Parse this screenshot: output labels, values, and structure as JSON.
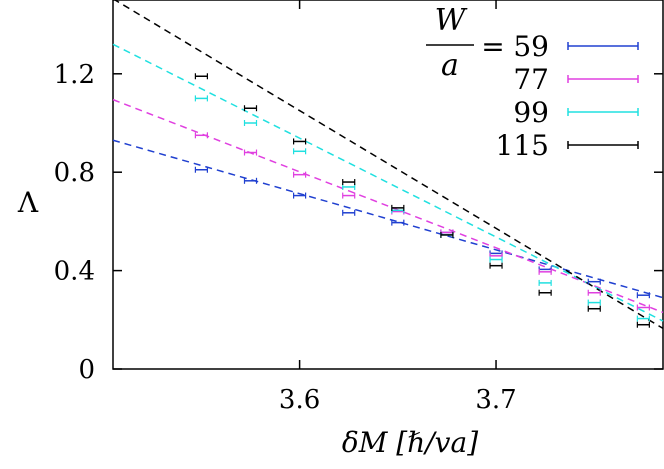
{
  "chart_data": {
    "type": "scatter",
    "xlabel": "δM [ℏ/va]",
    "ylabel": "Λ",
    "xlim": [
      3.505,
      3.785
    ],
    "ylim": [
      0,
      1.5
    ],
    "x_ticks": [
      "3.6",
      "3.7"
    ],
    "x_tick_values": [
      3.6,
      3.7
    ],
    "y_ticks": [
      "0",
      "0.4",
      "0.8",
      "1.2"
    ],
    "y_tick_values": [
      0,
      0.4,
      0.8,
      1.2
    ],
    "grid": false,
    "legend": {
      "placement": "top-right",
      "title_numerator": "W",
      "title_denominator": "a",
      "title_suffix": "="
    },
    "series": [
      {
        "name": "59",
        "color": "#2040d0",
        "x": [
          3.55,
          3.575,
          3.6,
          3.625,
          3.65,
          3.675,
          3.7,
          3.725,
          3.75,
          3.775
        ],
        "y": [
          0.81,
          0.765,
          0.705,
          0.635,
          0.595,
          0.555,
          0.47,
          0.405,
          0.355,
          0.3
        ],
        "fit": [
          [
            3.505,
            0.93
          ],
          [
            3.785,
            0.29
          ]
        ]
      },
      {
        "name": "77",
        "color": "#e040e0",
        "x": [
          3.55,
          3.575,
          3.6,
          3.625,
          3.65,
          3.675,
          3.7,
          3.725,
          3.75,
          3.775
        ],
        "y": [
          0.95,
          0.88,
          0.79,
          0.705,
          0.64,
          0.555,
          0.46,
          0.395,
          0.31,
          0.25
        ],
        "fit": [
          [
            3.505,
            1.095
          ],
          [
            3.785,
            0.23
          ]
        ]
      },
      {
        "name": "99",
        "color": "#20e0e0",
        "x": [
          3.55,
          3.575,
          3.6,
          3.625,
          3.65,
          3.675,
          3.7,
          3.725,
          3.75,
          3.775
        ],
        "y": [
          1.1,
          1.0,
          0.885,
          0.74,
          0.645,
          0.545,
          0.445,
          0.35,
          0.27,
          0.205
        ],
        "fit": [
          [
            3.505,
            1.32
          ],
          [
            3.785,
            0.195
          ]
        ]
      },
      {
        "name": "115",
        "color": "#000000",
        "x": [
          3.55,
          3.575,
          3.6,
          3.625,
          3.65,
          3.675,
          3.7,
          3.725,
          3.75,
          3.775
        ],
        "y": [
          1.19,
          1.06,
          0.925,
          0.76,
          0.655,
          0.545,
          0.42,
          0.31,
          0.245,
          0.18
        ],
        "fit": [
          [
            3.505,
            1.505
          ],
          [
            3.785,
            0.165
          ]
        ]
      }
    ]
  }
}
